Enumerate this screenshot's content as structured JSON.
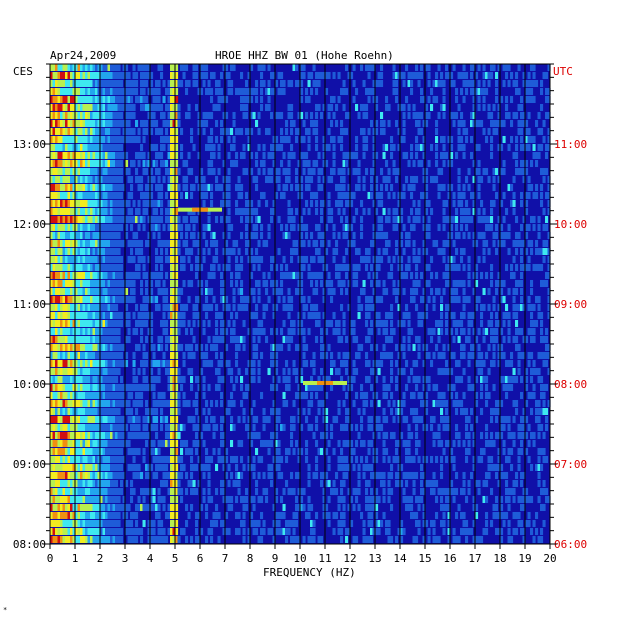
{
  "header": {
    "date": "Apr24,2009",
    "station": "HROE HHZ BW 01 (Hohe Roehn)"
  },
  "left_axis": {
    "label": "CES",
    "ticks": [
      "13:00",
      "12:00",
      "11:00",
      "10:00",
      "09:00",
      "08:00"
    ]
  },
  "right_axis": {
    "label": "UTC",
    "ticks": [
      "11:00",
      "10:00",
      "09:00",
      "08:00",
      "07:00",
      "06:00"
    ]
  },
  "footer_mark": "*",
  "chart_data": {
    "type": "heatmap",
    "title": "HROE HHZ BW 01 (Hohe Roehn)",
    "date": "Apr24,2009",
    "xlabel": "FREQUENCY (HZ)",
    "x_ticks": [
      "0",
      "1",
      "2",
      "3",
      "4",
      "5",
      "6",
      "7",
      "8",
      "9",
      "10",
      "11",
      "12",
      "13",
      "14",
      "15",
      "16",
      "17",
      "18",
      "19",
      "20"
    ],
    "xlim": [
      0,
      20
    ],
    "left_time_label": "CES",
    "right_time_label": "UTC",
    "left_time_ticks": [
      "13:00",
      "12:00",
      "11:00",
      "10:00",
      "09:00",
      "08:00"
    ],
    "right_time_ticks": [
      "11:00",
      "10:00",
      "09:00",
      "08:00",
      "07:00",
      "06:00"
    ],
    "time_range_ces": [
      "08:00",
      "13:56"
    ],
    "grid": true,
    "colors": {
      "background": "#1010a8",
      "grid": "#000000",
      "right_axis": "#dd0000",
      "colormap": [
        "#1a1aa0",
        "#1e5cd8",
        "#22a6ee",
        "#3ee8f0",
        "#b8f050",
        "#f2ec20",
        "#f09010",
        "#d01010"
      ]
    },
    "features": [
      {
        "name": "low-frequency microseism band",
        "freq_range_hz": [
          0,
          3
        ],
        "intensity": "high"
      },
      {
        "name": "5 Hz line",
        "freq_hz": 5,
        "intensity": "medium"
      },
      {
        "name": "10-11 Hz burst",
        "freq_hz": 11,
        "time_ces": "10:00",
        "intensity": "high"
      },
      {
        "name": "6 Hz burst",
        "freq_hz": 6,
        "time_ces": "12:10",
        "intensity": "high"
      }
    ]
  }
}
